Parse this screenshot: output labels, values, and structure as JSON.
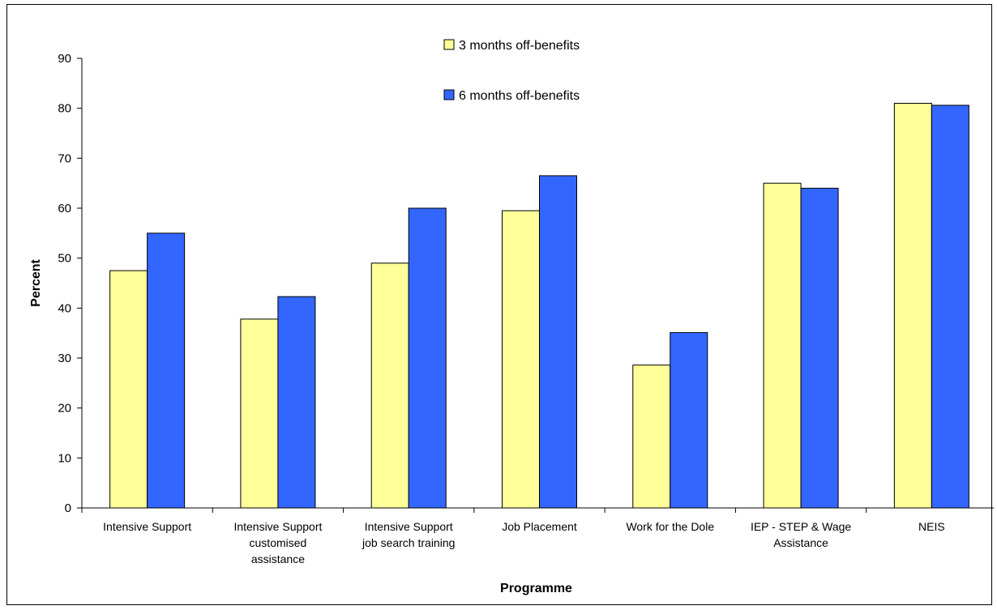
{
  "chart_data": {
    "type": "bar",
    "xlabel": "Programme",
    "ylabel": "Percent",
    "ylim": [
      0,
      90
    ],
    "yticks": [
      0,
      10,
      20,
      30,
      40,
      50,
      60,
      70,
      80,
      90
    ],
    "grid": false,
    "legend_position": "top-center",
    "categories": [
      [
        "Intensive Support"
      ],
      [
        "Intensive Support",
        "customised",
        "assistance"
      ],
      [
        "Intensive Support",
        "job search training"
      ],
      [
        "Job Placement"
      ],
      [
        "Work for the Dole"
      ],
      [
        "IEP - STEP & Wage",
        "Assistance"
      ],
      [
        "NEIS"
      ]
    ],
    "series": [
      {
        "name": "3 months off-benefits",
        "color": "#ffff99",
        "values": [
          47.5,
          37.8,
          49.0,
          59.5,
          28.6,
          65.0,
          81.0
        ]
      },
      {
        "name": "6 months off-benefits",
        "color": "#3366ff",
        "values": [
          55.0,
          42.3,
          60.0,
          66.5,
          35.1,
          64.0,
          80.6
        ]
      }
    ]
  }
}
